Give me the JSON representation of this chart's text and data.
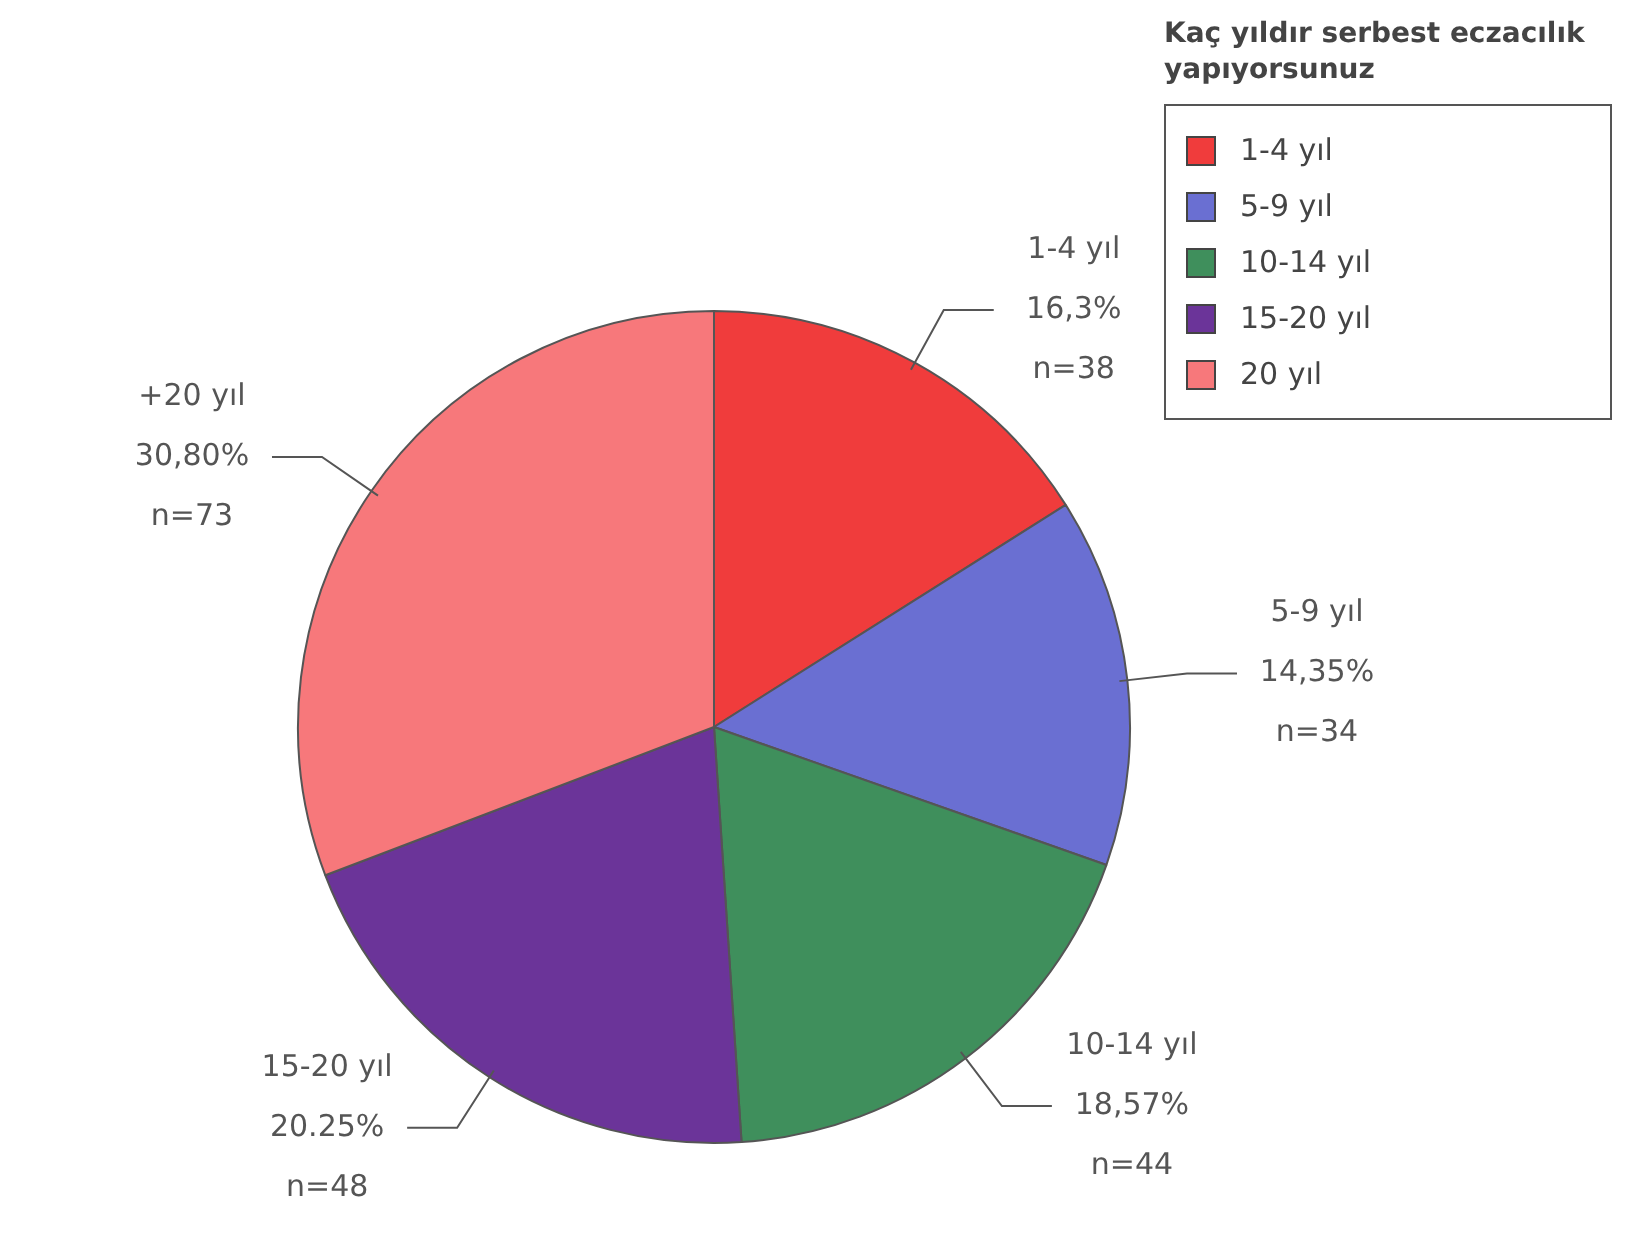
{
  "chart_data": {
    "type": "pie",
    "legend_title": "Kaç yıldır serbest eczacılık yapıyorsunuz",
    "legend": "top right",
    "categories": [
      "1-4 yıl",
      "5-9 yıl",
      "10-14 yıl",
      "15-20 yıl",
      "20 yıl"
    ],
    "values": [
      38,
      34,
      44,
      48,
      73
    ],
    "colors": [
      "#f03c3c",
      "#6a6fd2",
      "#3f8f5c",
      "#6b3499",
      "#f7787b"
    ],
    "value_labels": [
      "1-4 yıl\n16,3%\nn=38",
      "5-9 yıl\n14,35%\nn=34",
      "10-14 yıl\n18,57%\nn=44",
      "15-20 yıl\n20.25%\nn=48",
      "+20 yıl\n30,80%\nn=73"
    ]
  }
}
